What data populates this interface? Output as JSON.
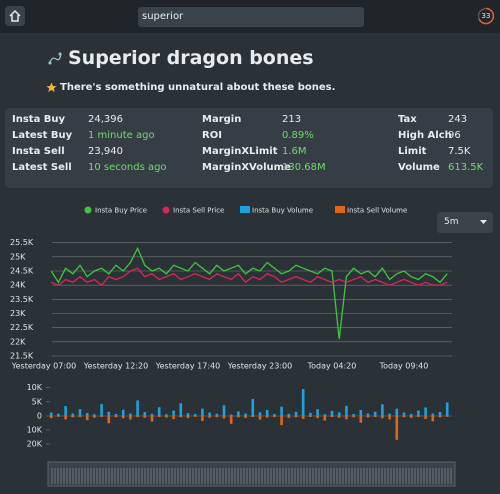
{
  "search": "superior",
  "timer": "33",
  "item": {
    "title": "Superior dragon bones",
    "description": "There's something unnatural about these bones."
  },
  "stats": [
    [
      {
        "label": "Insta Buy",
        "value": "24,396"
      },
      {
        "label": "Latest Buy",
        "value": "1 minute ago",
        "color": "#6fdc6f"
      },
      {
        "label": "Insta Sell",
        "value": "23,940"
      },
      {
        "label": "Latest Sell",
        "value": "10 seconds ago",
        "color": "#6fdc6f"
      }
    ],
    [
      {
        "label": "Margin",
        "value": "213"
      },
      {
        "label": "ROI",
        "value": "0.89%",
        "color": "#6fdc6f"
      },
      {
        "label": "MarginXLimit",
        "value": "1.6M",
        "color": "#6fdc6f"
      },
      {
        "label": "MarginXVolume",
        "value": "130.68M",
        "color": "#6fdc6f"
      }
    ],
    [
      {
        "label": "Tax",
        "value": "243"
      },
      {
        "label": "High Alch",
        "value": "96"
      },
      {
        "label": "Limit",
        "value": "7.5K"
      },
      {
        "label": "Volume",
        "value": "613.5K",
        "color": "#6fdc6f"
      }
    ]
  ],
  "timeframe": "5m",
  "chart_data": [
    {
      "type": "line",
      "categories": [
        "Yesterday 07:00",
        null,
        null,
        null,
        null,
        null,
        null,
        null,
        null,
        null,
        "Yesterday 12:20",
        null,
        null,
        null,
        null,
        null,
        null,
        null,
        null,
        null,
        "Yesterday 17:40",
        null,
        null,
        null,
        null,
        null,
        null,
        null,
        null,
        null,
        "Yesterday 23:00",
        null,
        null,
        null,
        null,
        null,
        null,
        null,
        null,
        null,
        "Today 04:20",
        null,
        null,
        null,
        null,
        null,
        null,
        null,
        null,
        null,
        "Today 09:40",
        null,
        null,
        null,
        null,
        null,
        null
      ],
      "series": [
        {
          "name": "Insta Buy Price",
          "color": "#3ec63e",
          "values": [
            null,
            24500,
            24100,
            24600,
            24400,
            24700,
            24300,
            24500,
            24600,
            24400,
            24700,
            24500,
            24800,
            25300,
            24700,
            24500,
            24600,
            24400,
            24700,
            24600,
            24500,
            24800,
            24600,
            24400,
            24700,
            24500,
            24600,
            24700,
            24400,
            24600,
            24500,
            24800,
            24600,
            24400,
            24500,
            24700,
            24600,
            24500,
            24400,
            24600,
            24500,
            22100,
            24300,
            24600,
            24400,
            24500,
            24300,
            24600,
            24200,
            24400,
            24500,
            24300,
            24200,
            24400,
            24300,
            24100,
            24400
          ]
        },
        {
          "name": "Insta Sell Price",
          "color": "#d9265a",
          "values": [
            null,
            24100,
            24000,
            24200,
            24100,
            24300,
            24100,
            24200,
            24000,
            24300,
            24200,
            24300,
            24500,
            24600,
            24300,
            24400,
            24200,
            24300,
            24400,
            24200,
            24300,
            24400,
            24300,
            24200,
            24400,
            24300,
            24200,
            24400,
            24100,
            24300,
            24200,
            24400,
            24300,
            24100,
            24200,
            24300,
            24200,
            24100,
            24300,
            24200,
            24100,
            24200,
            24100,
            24200,
            24300,
            24100,
            24200,
            24100,
            24000,
            24100,
            24200,
            24100,
            24000,
            24100,
            24000,
            24000,
            24100
          ]
        }
      ],
      "ylim": [
        21500,
        25700
      ],
      "yticks": [
        {
          "value": 21500,
          "label": "21.5K"
        },
        {
          "value": 22000,
          "label": "22K"
        },
        {
          "value": 22500,
          "label": "22.5K"
        },
        {
          "value": 23000,
          "label": "23K"
        },
        {
          "value": 23500,
          "label": "23.5K"
        },
        {
          "value": 24000,
          "label": "24K"
        },
        {
          "value": 24500,
          "label": "24.5K"
        },
        {
          "value": 25000,
          "label": "25K"
        },
        {
          "value": 25500,
          "label": "25.5K"
        }
      ],
      "grid": true
    },
    {
      "type": "bar",
      "series": [
        {
          "name": "Insta Buy Volume",
          "color": "#1ba3e0",
          "values": [
            null,
            1200,
            800,
            3500,
            900,
            2400,
            1100,
            600,
            4200,
            1500,
            700,
            2200,
            900,
            5500,
            1400,
            800,
            3100,
            600,
            1900,
            4500,
            1000,
            700,
            2600,
            1200,
            800,
            3800,
            500,
            1600,
            900,
            6000,
            1300,
            2100,
            700,
            3300,
            800,
            1500,
            9500,
            1100,
            2400,
            600,
            1800,
            1300,
            3600,
            700,
            2100,
            900,
            1500,
            4100,
            800,
            2600,
            1200,
            700,
            1900,
            3000,
            900,
            1400,
            4800
          ]
        },
        {
          "name": "Insta Sell Volume",
          "color": "#e0661b",
          "axis": "y2",
          "values": [
            null,
            1500,
            600,
            2400,
            1000,
            800,
            3000,
            1200,
            700,
            5200,
            900,
            1600,
            2500,
            800,
            1300,
            4000,
            700,
            1100,
            2200,
            900,
            1500,
            600,
            3500,
            1200,
            800,
            1800,
            5600,
            900,
            1400,
            700,
            2600,
            1100,
            800,
            6500,
            1300,
            900,
            2000,
            700,
            1500,
            3300,
            800,
            1200,
            2300,
            900,
            4800,
            1100,
            700,
            1600,
            2400,
            17000,
            900,
            1300,
            700,
            2100,
            3800,
            1000,
            600
          ]
        }
      ],
      "ylim": [
        0,
        12000
      ],
      "yticks": [
        0,
        {
          "value": 5000,
          "label": "5K"
        },
        {
          "value": 10000,
          "label": "10K"
        }
      ],
      "y2lim": [
        0,
        25000
      ],
      "y2ticks": [
        {
          "value": 10000,
          "label": "10K"
        },
        {
          "value": 20000,
          "label": "20K"
        }
      ],
      "y2_inverted": true
    }
  ]
}
